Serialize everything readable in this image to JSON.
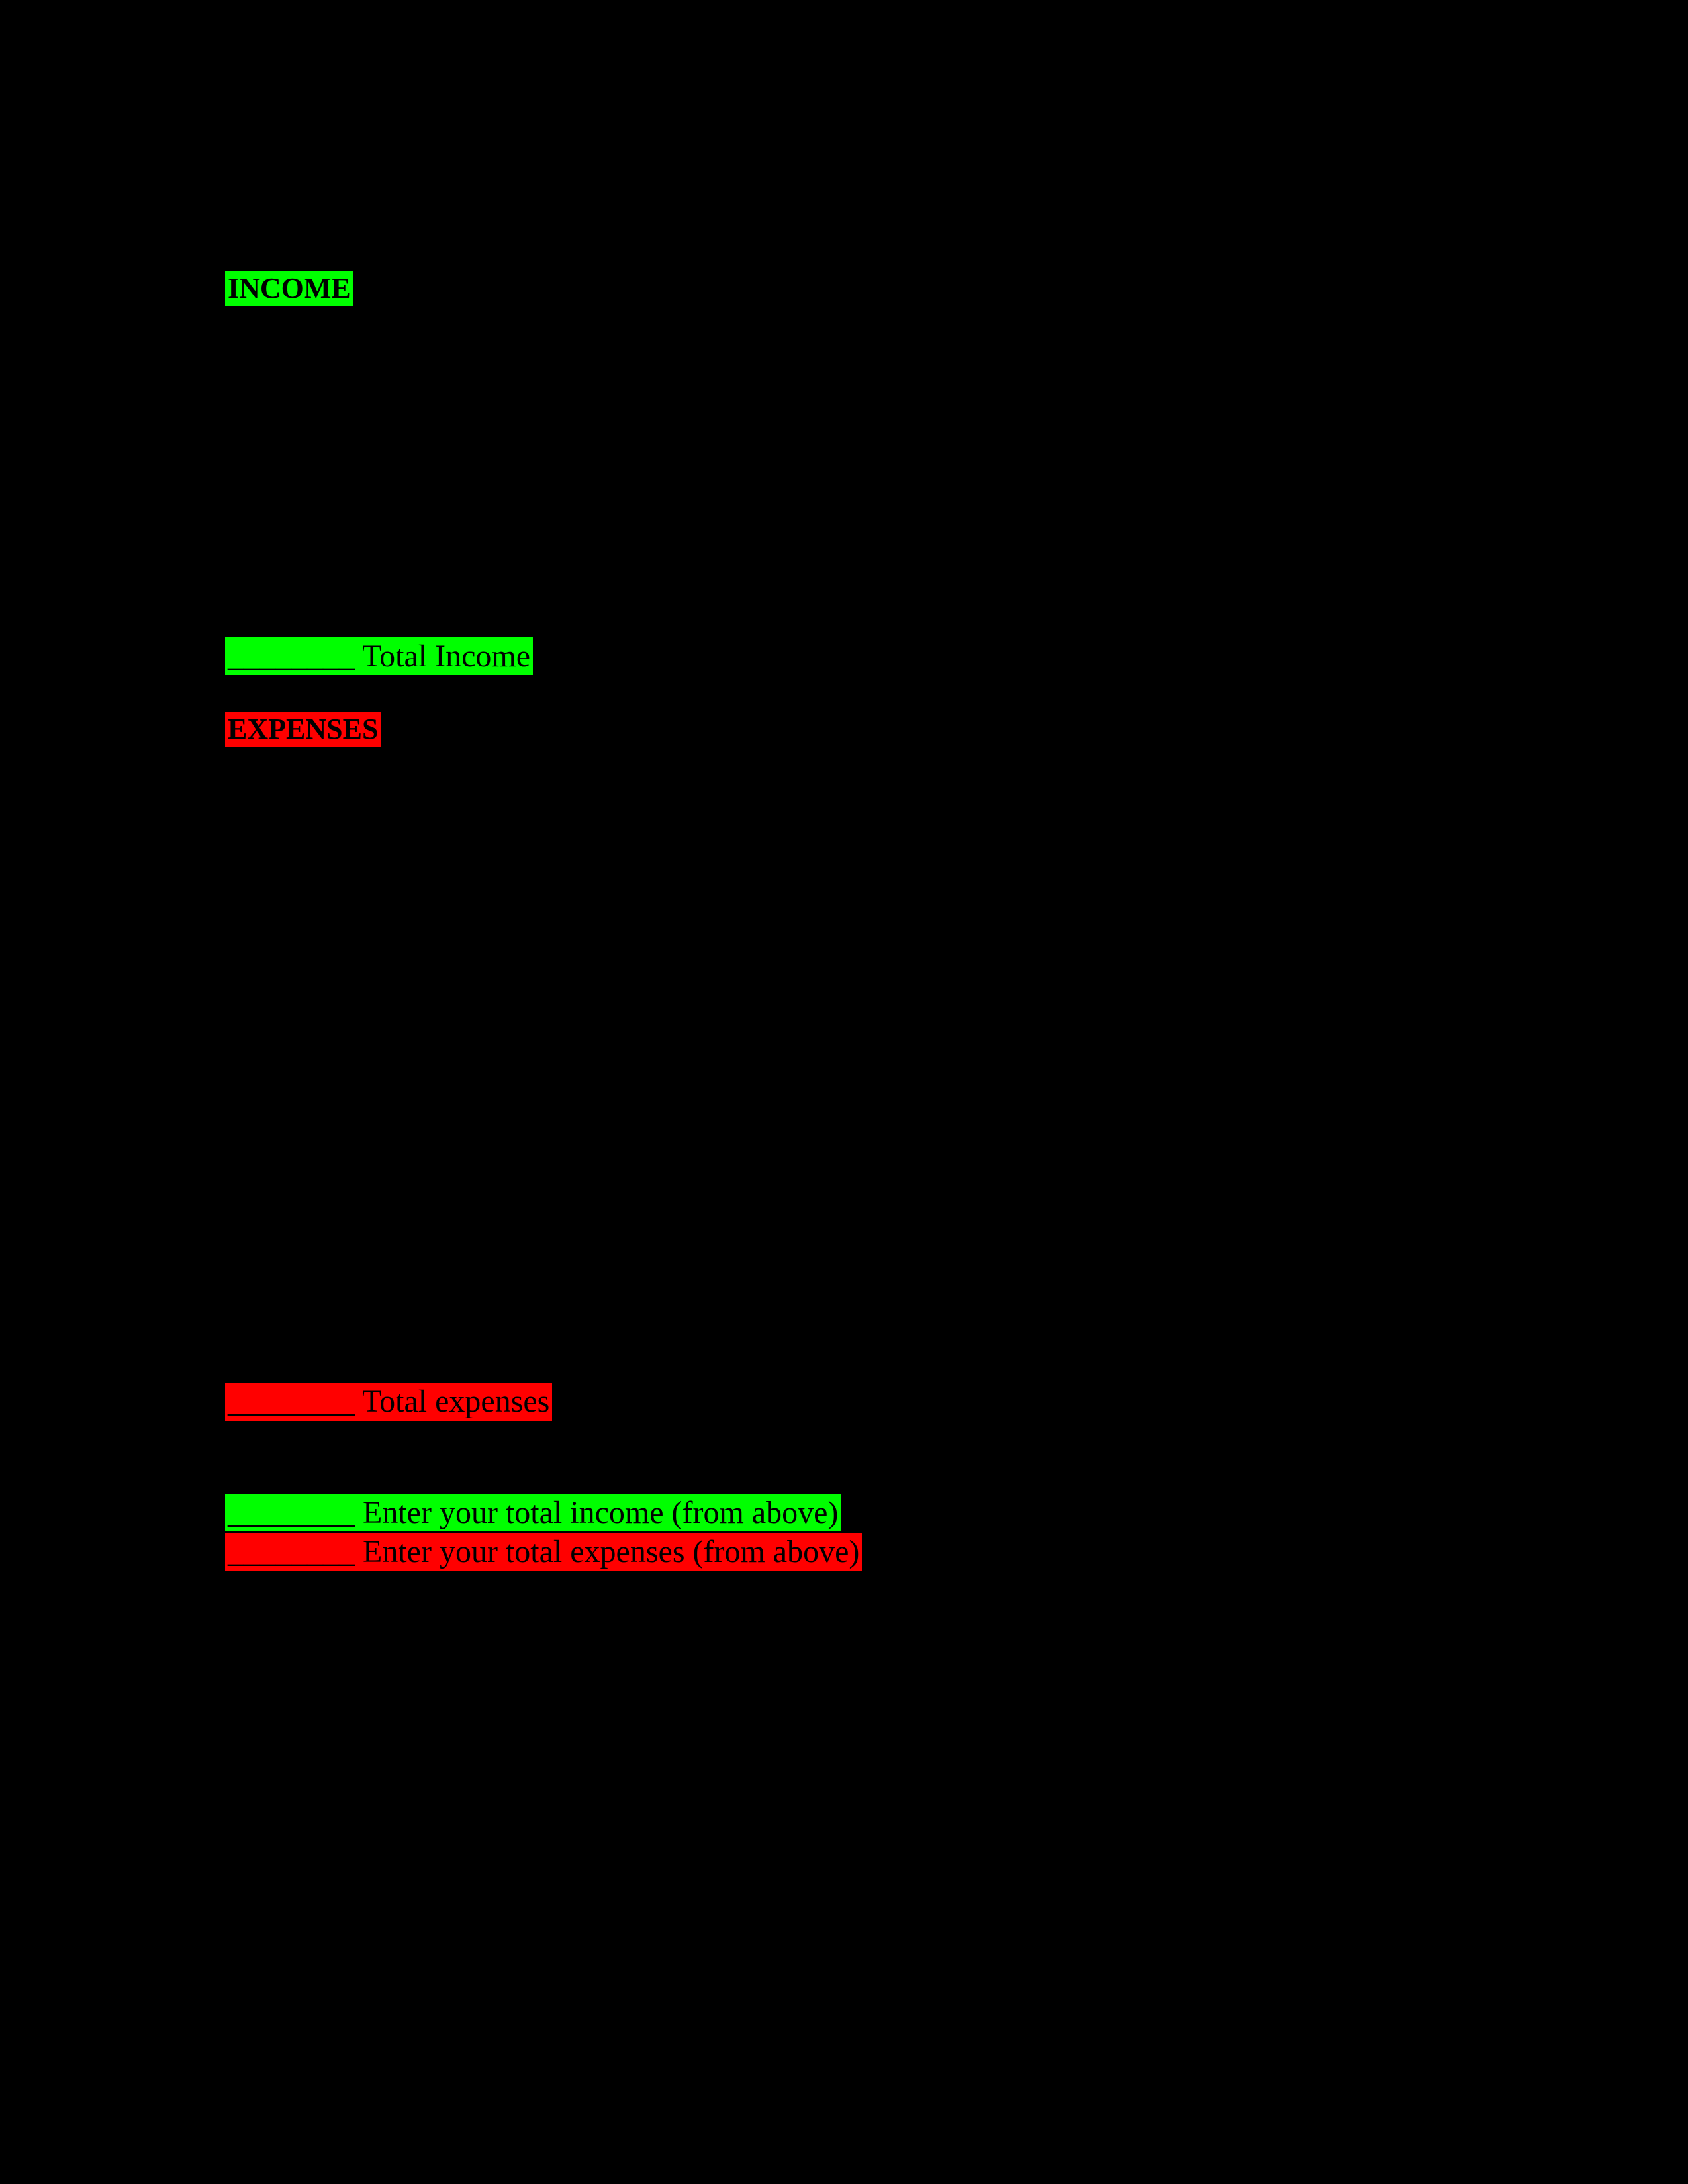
{
  "colors": {
    "background": "#000000",
    "income_highlight": "#00ff00",
    "expense_highlight": "#ff0000",
    "text": "#000000"
  },
  "typography": {
    "header_font_size_pt": 16,
    "body_font_size_pt": 18,
    "font_family": "Times New Roman"
  },
  "sections": {
    "income": {
      "header": "INCOME",
      "total_line": "________ Total Income"
    },
    "expenses": {
      "header": "EXPENSES",
      "total_line": "________ Total expenses"
    },
    "summary": {
      "income_line": "________ Enter your total income (from above)",
      "expense_line": "________ Enter your total expenses (from above)"
    }
  }
}
